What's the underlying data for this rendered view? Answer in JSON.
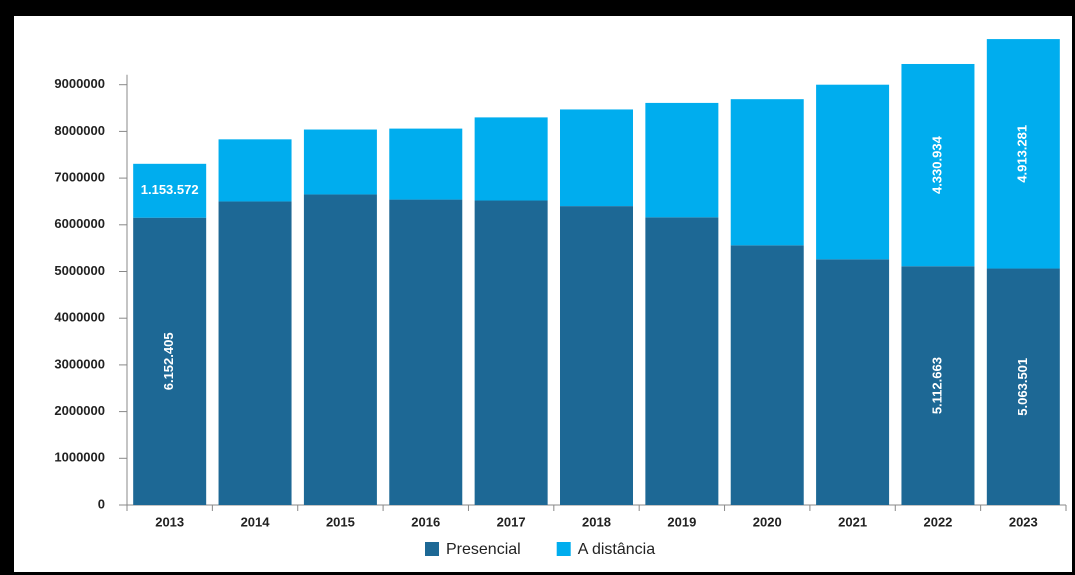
{
  "chart_data": {
    "type": "stacked_bar",
    "categories": [
      "2013",
      "2014",
      "2015",
      "2016",
      "2017",
      "2018",
      "2019",
      "2020",
      "2021",
      "2022",
      "2023"
    ],
    "series": [
      {
        "name": "Presencial",
        "color": "#1d6895",
        "values": [
          6152405,
          6500000,
          6650000,
          6540000,
          6520000,
          6400000,
          6160000,
          5560000,
          5260000,
          5112663,
          5063501
        ],
        "value_labels": [
          "6.152.405",
          null,
          null,
          null,
          null,
          null,
          null,
          null,
          null,
          "5.112.663",
          "5.063.501"
        ]
      },
      {
        "name": "A distância",
        "color": "#00adee",
        "values": [
          1153572,
          1330000,
          1390000,
          1520000,
          1780000,
          2070000,
          2450000,
          3130000,
          3740000,
          4330934,
          4913281
        ],
        "value_labels": [
          "1.153.572",
          null,
          null,
          null,
          null,
          null,
          null,
          null,
          null,
          "4.330.934",
          "4.913.281"
        ]
      }
    ],
    "ylim": [
      0,
      10000000
    ],
    "yticks": [
      0,
      1000000,
      2000000,
      3000000,
      4000000,
      5000000,
      6000000,
      7000000,
      8000000,
      9000000
    ],
    "legend": "bottom"
  }
}
